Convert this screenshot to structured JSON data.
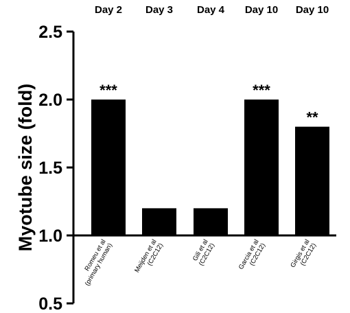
{
  "chart_data": {
    "type": "bar",
    "title": "",
    "ylabel": "Myotube size (fold)",
    "xlabel": "",
    "ylim": [
      0.5,
      2.5
    ],
    "yticks": [
      0.5,
      1.0,
      1.5,
      2.0,
      2.5
    ],
    "ytick_labels": [
      "0.5",
      "1.0",
      "1.5",
      "2.0",
      "2.5"
    ],
    "baseline": 1.0,
    "grid": false,
    "bar_color": "#000000",
    "categories": [
      {
        "line1": "Romeu et al",
        "line2": "(primary human)"
      },
      {
        "line1": "Meijden et al",
        "line2": "(C2C12)"
      },
      {
        "line1": "Gili et al",
        "line2": "(C2C12)"
      },
      {
        "line1": "Garcia et al",
        "line2": "(C2C12)"
      },
      {
        "line1": "Girgis et al",
        "line2": "(C2C12)"
      }
    ],
    "day_labels": [
      "Day 2",
      "Day 3",
      "Day 4",
      "Day 10",
      "Day 10"
    ],
    "values": [
      2.0,
      1.2,
      1.2,
      2.0,
      1.8
    ],
    "significance": [
      "***",
      "",
      "",
      "***",
      "**"
    ]
  }
}
